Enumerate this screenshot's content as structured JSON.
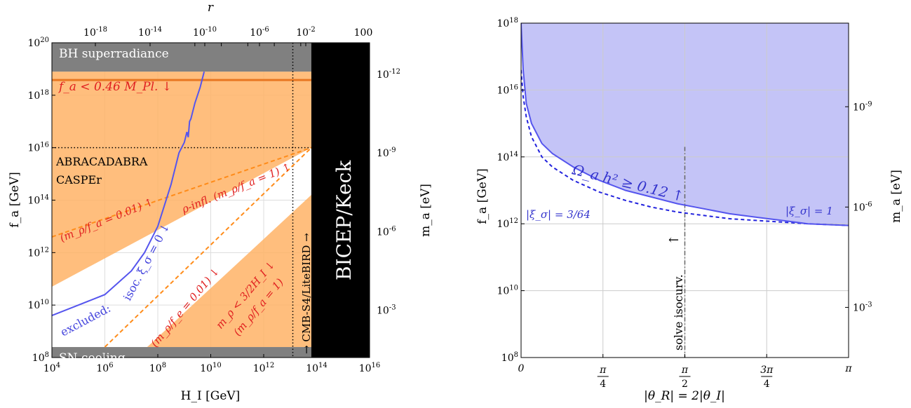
{
  "chart_data": [
    {
      "type": "area",
      "xlabel": "H_I [GeV]",
      "ylabel": "f_a [GeV]",
      "top_xlabel": "r",
      "right_ylabel": "m_a [eV]",
      "xscale": "log",
      "yscale": "log",
      "xlim": [
        10000.0,
        1e+16
      ],
      "ylim": [
        100000000.0,
        1e+20
      ],
      "grid": true,
      "x_ticks": [
        "10^4",
        "10^6",
        "10^8",
        "10^10",
        "10^12",
        "10^14",
        "10^16"
      ],
      "x_tick_values": [
        4,
        6,
        8,
        10,
        12,
        14,
        16
      ],
      "y_ticks": [
        "10^8",
        "10^10",
        "10^12",
        "10^14",
        "10^16",
        "10^18",
        "10^20"
      ],
      "y_tick_values": [
        8,
        10,
        12,
        14,
        16,
        18,
        20
      ],
      "top_ticks": [
        "10^-18",
        "10^-14",
        "10^-10",
        "10^-6",
        "10^-2",
        "100"
      ],
      "top_tick_positions_log10_HI": [
        9.4,
        10.4,
        11.4,
        12.4,
        13.4,
        14.4
      ],
      "right_ticks": [
        "10^-12",
        "10^-9",
        "10^-6",
        "10^-3"
      ],
      "right_tick_positions_log10_fa": [
        18.8,
        15.8,
        12.8,
        9.8
      ],
      "regions": [
        {
          "label": "BH superradiance",
          "fill": "#808080",
          "fa_min_log10": 18.9
        },
        {
          "label": "SN cooling",
          "fill": "#808080",
          "fa_max_log10": 8.4
        },
        {
          "label": "BICEP/Keck",
          "fill": "#000000",
          "HI_min_log10": 13.8
        }
      ],
      "labels": {
        "planck": "f_a < 0.46 M_Pl. ↓",
        "abracadabra": "ABRACADABRA",
        "casper": "CASPEr",
        "rho_ratio_low_upper": "(m_ρ/f_a = 0.01) ↑",
        "rho_infl": "ρ-infl. (m_ρ/f_a = 1) ↑",
        "rho_ratio_low_lower": "(m_ρ/f_e = 0.01) ↓",
        "rho_mass_bound": "m_ρ < 3/2H_I ↓",
        "rho_mass_bound_sub": "(m_ρ/f_a = 1)",
        "isoc": "isoc. ξ_σ = 0 ↓",
        "excluded": "excluded:",
        "cmb": "→ CMB-S4/LiteBIRD →"
      },
      "series": [
        {
          "name": "isoc. ξ_σ = 0",
          "style": "solid",
          "color": "#5555ee",
          "x_log10": [
            4.0,
            5.0,
            6.0,
            7.0,
            7.5,
            8.0,
            8.5,
            8.8,
            9.0,
            9.1,
            9.15,
            9.2,
            9.25,
            9.3,
            9.4,
            9.6,
            9.75
          ],
          "y_log10": [
            9.6,
            10.0,
            10.4,
            11.3,
            12.0,
            13.0,
            14.6,
            15.8,
            16.2,
            16.6,
            16.4,
            17.0,
            17.1,
            17.3,
            17.7,
            18.3,
            18.9
          ]
        },
        {
          "name": "(m_ρ/f_a = 0.01) ↑",
          "style": "dashed",
          "color": "#ff8c1a",
          "x_log10": [
            4.0,
            13.8
          ],
          "y_log10": [
            12.6,
            16.0
          ]
        },
        {
          "name": "(m_ρ/f_e = 0.01) ↓",
          "style": "dashed",
          "color": "#ff8c1a",
          "x_log10": [
            6.0,
            13.8
          ],
          "y_log10": [
            8.4,
            16.0
          ]
        }
      ]
    },
    {
      "type": "area",
      "xlabel": "|θ_R| = 2|θ_I|",
      "ylabel": "f_a [GeV]",
      "right_ylabel": "m_a [eV]",
      "yscale": "log",
      "xlim": [
        0,
        3.1416
      ],
      "ylim": [
        100000000.0,
        1e+18
      ],
      "grid": true,
      "x_ticks": [
        "0",
        "π/4",
        "π/2",
        "3π/4",
        "π"
      ],
      "x_tick_values": [
        0,
        0.7854,
        1.5708,
        2.3562,
        3.1416
      ],
      "y_ticks": [
        "10^8",
        "10^10",
        "10^12",
        "10^14",
        "10^16",
        "10^18"
      ],
      "y_tick_values": [
        8,
        10,
        12,
        14,
        16,
        18
      ],
      "right_ticks": [
        "10^-9",
        "10^-6",
        "10^-3"
      ],
      "right_tick_positions_log10_fa": [
        15.5,
        12.5,
        9.5
      ],
      "labels": {
        "omega": "Ω_a h² ≥ 0.12 ↑",
        "xi_small": "|ξ_σ| = 3/64",
        "xi_one": "|ξ_σ| = 1",
        "solve": "solve isocurv.",
        "arrow": "←"
      },
      "series": [
        {
          "name": "|ξ_σ| = 1",
          "style": "solid",
          "color": "#5555ee",
          "x": [
            0.0,
            0.02,
            0.05,
            0.1,
            0.2,
            0.3,
            0.5,
            0.75,
            1.0,
            1.25,
            1.5,
            1.75,
            2.0,
            2.25,
            2.5,
            2.75,
            3.1416
          ],
          "y_log10": [
            18.0,
            16.6,
            15.6,
            15.0,
            14.4,
            14.1,
            13.7,
            13.3,
            13.0,
            12.8,
            12.6,
            12.45,
            12.3,
            12.2,
            12.1,
            12.0,
            11.95
          ]
        },
        {
          "name": "|ξ_σ| = 3/64",
          "style": "dashed",
          "color": "#2222dd",
          "x": [
            0.0,
            0.02,
            0.05,
            0.1,
            0.2,
            0.3,
            0.5,
            0.75,
            1.0,
            1.25,
            1.5,
            1.75,
            2.0,
            2.25,
            2.5,
            2.75,
            3.1416
          ],
          "y_log10": [
            16.6,
            15.8,
            15.2,
            14.6,
            14.0,
            13.7,
            13.3,
            12.95,
            12.7,
            12.5,
            12.35,
            12.25,
            12.15,
            12.1,
            12.05,
            12.0,
            11.95
          ]
        }
      ],
      "vline": {
        "x": 1.5708,
        "style": "dash-dot",
        "color": "#666666"
      }
    }
  ]
}
